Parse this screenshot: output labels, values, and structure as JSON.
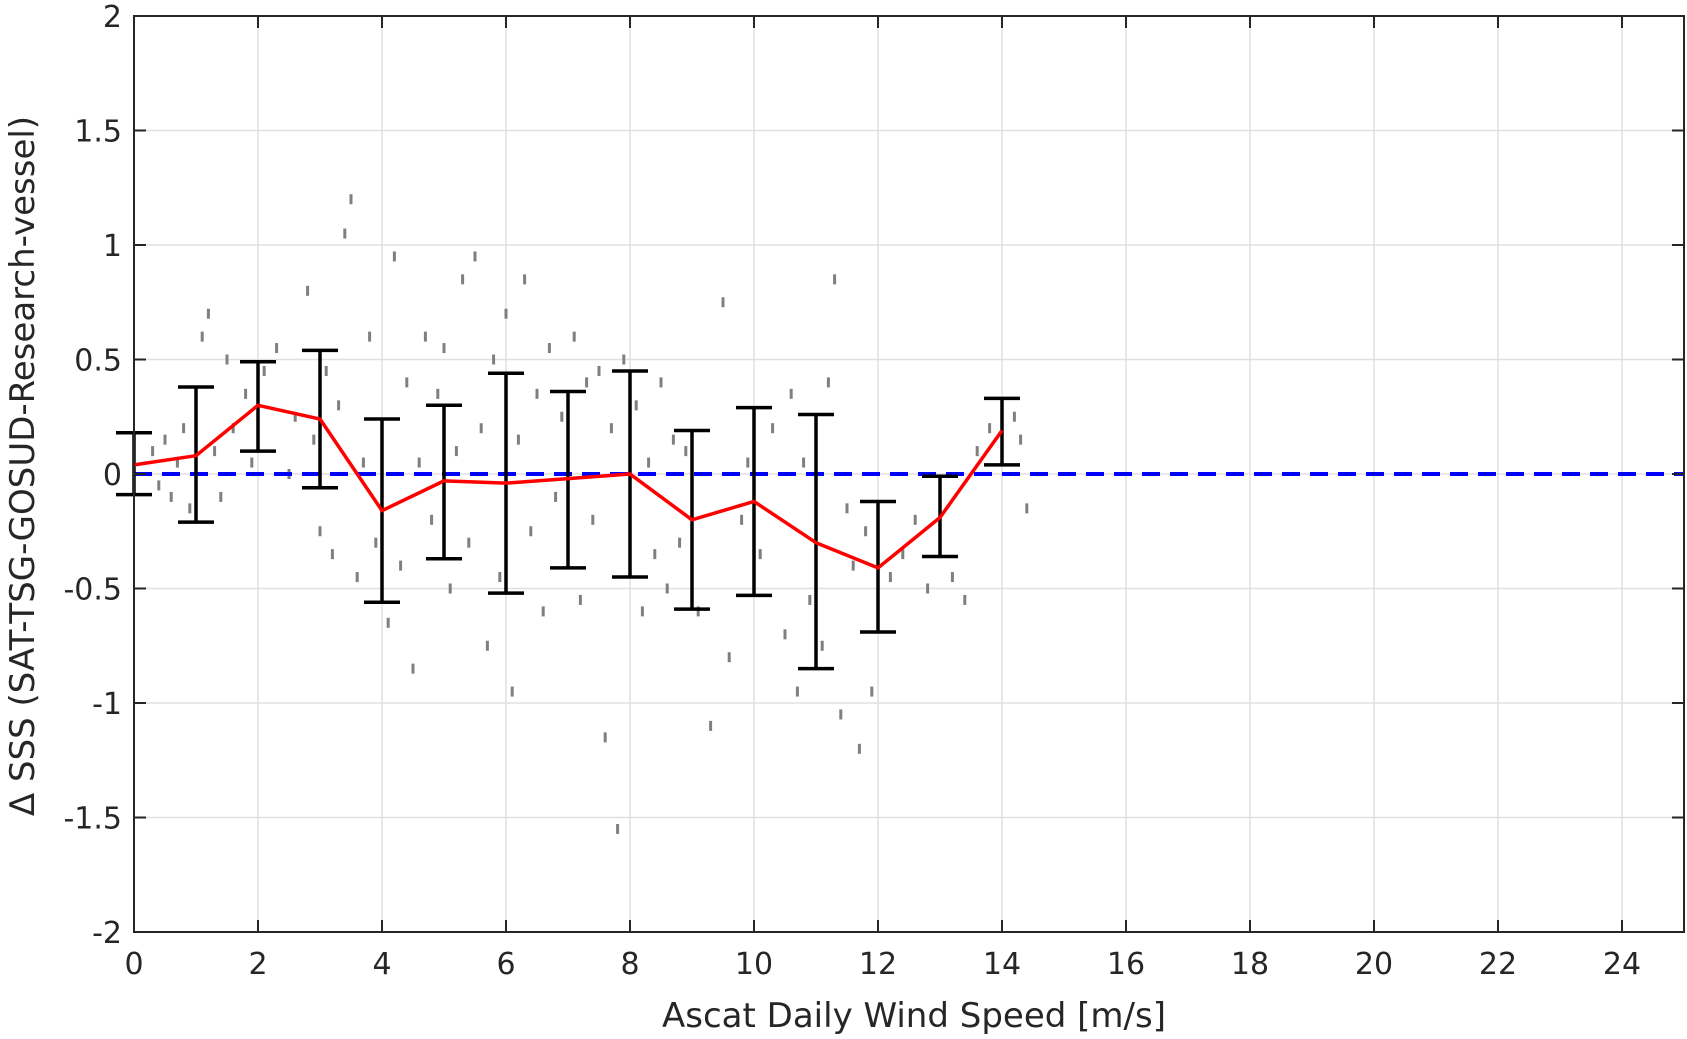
{
  "chart_data": {
    "type": "scatter",
    "title": "",
    "xlabel": "Ascat Daily Wind Speed [m/s]",
    "ylabel": "Δ SSS (SAT-TSG-GOSUD-Research-vessel)",
    "xlim": [
      0,
      25
    ],
    "ylim": [
      -2,
      2
    ],
    "xticks": [
      0,
      2,
      4,
      6,
      8,
      10,
      12,
      14,
      16,
      18,
      20,
      22,
      24
    ],
    "yticks": [
      -2,
      -1.5,
      -1,
      -0.5,
      0,
      0.5,
      1,
      1.5,
      2
    ],
    "xtick_labels": [
      "0",
      "2",
      "4",
      "6",
      "8",
      "10",
      "12",
      "14",
      "16",
      "18",
      "20",
      "22",
      "24"
    ],
    "ytick_labels": [
      "-2",
      "-1.5",
      "-1",
      "-0.5",
      "0",
      "0.5",
      "1",
      "1.5",
      "2"
    ],
    "grid": true,
    "colors": {
      "scatter": "#7f7f7f",
      "mean_line": "#ff0000",
      "error_bars": "#000000",
      "zero_line": "#0000ff",
      "grid": "#e0e0e0",
      "axes": "#262626"
    },
    "zero_reference": {
      "y": 0,
      "style": "dashed"
    },
    "mean_line": {
      "x": [
        0,
        1,
        2,
        3,
        4,
        5,
        6,
        7,
        8,
        9,
        10,
        11,
        12,
        13,
        14
      ],
      "y": [
        0.04,
        0.08,
        0.3,
        0.24,
        -0.16,
        -0.03,
        -0.04,
        -0.02,
        0.0,
        -0.2,
        -0.12,
        -0.3,
        -0.41,
        -0.19,
        0.19
      ]
    },
    "error_bars": [
      {
        "x": 0,
        "low": -0.09,
        "high": 0.18
      },
      {
        "x": 1,
        "low": -0.21,
        "high": 0.38
      },
      {
        "x": 2,
        "low": 0.1,
        "high": 0.49
      },
      {
        "x": 3,
        "low": -0.06,
        "high": 0.54
      },
      {
        "x": 4,
        "low": -0.56,
        "high": 0.24
      },
      {
        "x": 5,
        "low": -0.37,
        "high": 0.3
      },
      {
        "x": 6,
        "low": -0.52,
        "high": 0.44
      },
      {
        "x": 7,
        "low": -0.41,
        "high": 0.36
      },
      {
        "x": 8,
        "low": -0.45,
        "high": 0.45
      },
      {
        "x": 9,
        "low": -0.59,
        "high": 0.19
      },
      {
        "x": 10,
        "low": -0.53,
        "high": 0.29
      },
      {
        "x": 11,
        "low": -0.85,
        "high": 0.26
      },
      {
        "x": 12,
        "low": -0.69,
        "high": -0.12
      },
      {
        "x": 13,
        "low": -0.36,
        "high": -0.01
      },
      {
        "x": 14,
        "low": 0.04,
        "high": 0.33
      }
    ],
    "scatter_points": [
      [
        0.3,
        0.1
      ],
      [
        0.4,
        -0.05
      ],
      [
        0.5,
        0.15
      ],
      [
        0.6,
        -0.1
      ],
      [
        0.7,
        0.05
      ],
      [
        0.8,
        0.2
      ],
      [
        0.9,
        -0.15
      ],
      [
        1.0,
        0.3
      ],
      [
        1.1,
        0.6
      ],
      [
        1.2,
        0.7
      ],
      [
        1.3,
        0.1
      ],
      [
        1.4,
        -0.1
      ],
      [
        1.5,
        0.5
      ],
      [
        1.6,
        0.2
      ],
      [
        1.8,
        0.35
      ],
      [
        1.9,
        0.05
      ],
      [
        2.1,
        0.45
      ],
      [
        2.3,
        0.55
      ],
      [
        2.5,
        0.0
      ],
      [
        2.6,
        0.25
      ],
      [
        2.8,
        0.8
      ],
      [
        2.9,
        0.15
      ],
      [
        3.0,
        -0.25
      ],
      [
        3.1,
        0.45
      ],
      [
        3.2,
        -0.35
      ],
      [
        3.3,
        0.3
      ],
      [
        3.4,
        1.05
      ],
      [
        3.5,
        1.2
      ],
      [
        3.6,
        -0.45
      ],
      [
        3.7,
        0.05
      ],
      [
        3.8,
        0.6
      ],
      [
        3.9,
        -0.3
      ],
      [
        4.0,
        0.2
      ],
      [
        4.1,
        -0.65
      ],
      [
        4.2,
        0.95
      ],
      [
        4.3,
        -0.4
      ],
      [
        4.4,
        0.4
      ],
      [
        4.5,
        -0.85
      ],
      [
        4.6,
        0.05
      ],
      [
        4.7,
        0.6
      ],
      [
        4.8,
        -0.2
      ],
      [
        4.9,
        0.35
      ],
      [
        5.0,
        0.55
      ],
      [
        5.1,
        -0.5
      ],
      [
        5.2,
        0.1
      ],
      [
        5.3,
        0.85
      ],
      [
        5.4,
        -0.3
      ],
      [
        5.5,
        0.95
      ],
      [
        5.6,
        0.2
      ],
      [
        5.7,
        -0.75
      ],
      [
        5.8,
        0.5
      ],
      [
        5.9,
        -0.45
      ],
      [
        6.0,
        0.7
      ],
      [
        6.1,
        -0.95
      ],
      [
        6.2,
        0.15
      ],
      [
        6.3,
        0.85
      ],
      [
        6.4,
        -0.25
      ],
      [
        6.5,
        0.35
      ],
      [
        6.6,
        -0.6
      ],
      [
        6.7,
        0.55
      ],
      [
        6.8,
        -0.1
      ],
      [
        6.9,
        0.25
      ],
      [
        7.0,
        -0.35
      ],
      [
        7.1,
        0.6
      ],
      [
        7.2,
        -0.55
      ],
      [
        7.3,
        0.4
      ],
      [
        7.4,
        -0.2
      ],
      [
        7.5,
        0.45
      ],
      [
        7.6,
        -1.15
      ],
      [
        7.7,
        0.2
      ],
      [
        7.8,
        -1.55
      ],
      [
        7.9,
        0.5
      ],
      [
        8.0,
        -0.25
      ],
      [
        8.1,
        0.3
      ],
      [
        8.2,
        -0.6
      ],
      [
        8.3,
        0.05
      ],
      [
        8.4,
        -0.35
      ],
      [
        8.5,
        0.4
      ],
      [
        8.6,
        -0.5
      ],
      [
        8.7,
        0.15
      ],
      [
        8.8,
        -0.3
      ],
      [
        8.9,
        0.1
      ],
      [
        9.1,
        -0.6
      ],
      [
        9.3,
        -1.1
      ],
      [
        9.5,
        0.75
      ],
      [
        9.6,
        -0.8
      ],
      [
        9.8,
        -0.2
      ],
      [
        9.9,
        0.05
      ],
      [
        10.1,
        -0.35
      ],
      [
        10.3,
        0.2
      ],
      [
        10.5,
        -0.7
      ],
      [
        10.6,
        0.35
      ],
      [
        10.7,
        -0.95
      ],
      [
        10.8,
        0.05
      ],
      [
        10.9,
        -0.55
      ],
      [
        11.0,
        -0.2
      ],
      [
        11.1,
        -0.75
      ],
      [
        11.2,
        0.4
      ],
      [
        11.3,
        0.85
      ],
      [
        11.4,
        -1.05
      ],
      [
        11.5,
        -0.15
      ],
      [
        11.6,
        -0.4
      ],
      [
        11.7,
        -1.2
      ],
      [
        11.8,
        -0.25
      ],
      [
        11.9,
        -0.95
      ],
      [
        12.0,
        -0.55
      ],
      [
        12.2,
        -0.45
      ],
      [
        12.4,
        -0.35
      ],
      [
        12.6,
        -0.2
      ],
      [
        12.8,
        -0.5
      ],
      [
        13.0,
        -0.25
      ],
      [
        13.2,
        -0.45
      ],
      [
        13.4,
        -0.55
      ],
      [
        13.6,
        0.1
      ],
      [
        13.8,
        0.2
      ],
      [
        14.2,
        0.25
      ],
      [
        14.3,
        0.15
      ],
      [
        14.4,
        -0.15
      ]
    ]
  }
}
